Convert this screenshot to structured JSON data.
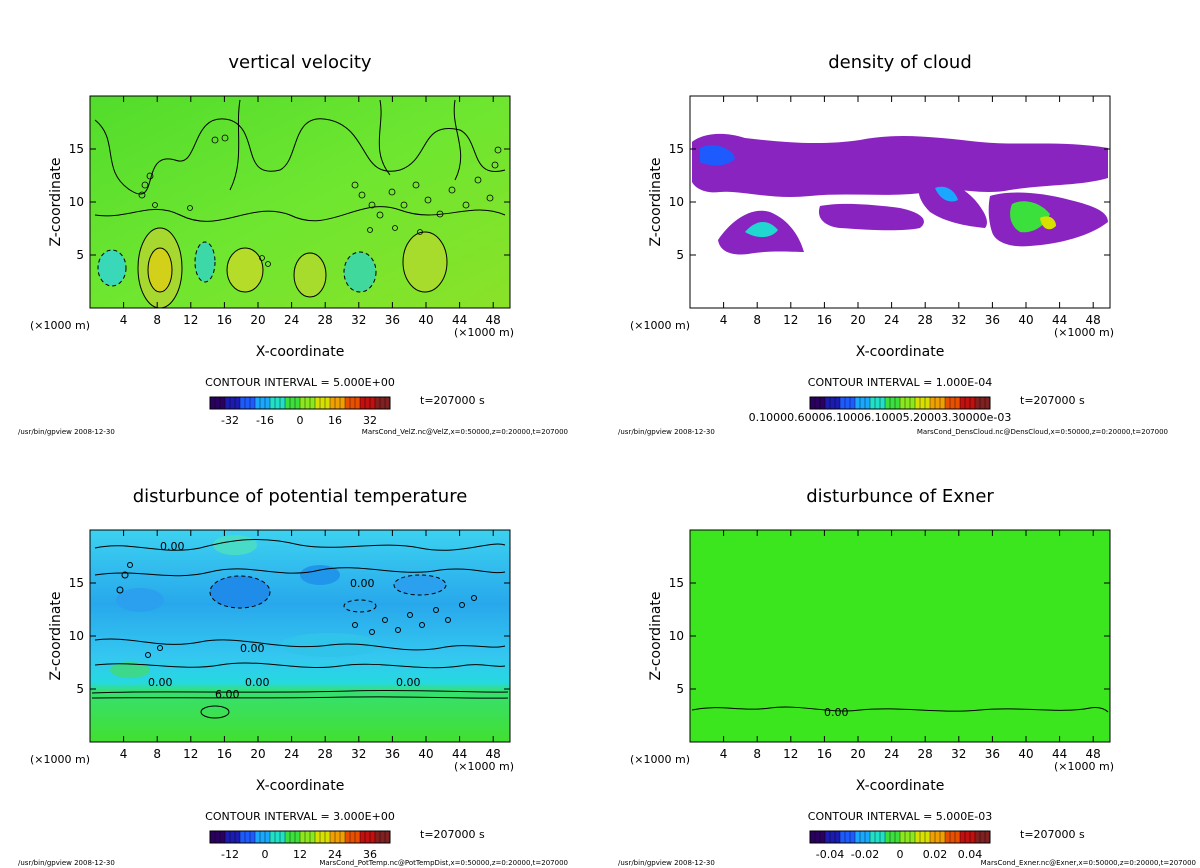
{
  "footer_left": "/usr/bin/gpview  2008-12-30",
  "colors": {
    "bg": "#ffffff",
    "axis": "#000000",
    "contour": "#000000"
  },
  "chart_data": [
    {
      "type": "heatmap",
      "title": "vertical velocity",
      "xlabel": "X-coordinate",
      "ylabel": "Z-coordinate",
      "x_unit": "(×1000 m)",
      "xlim": [
        0,
        50
      ],
      "ylim": [
        0,
        20
      ],
      "x_ticks": [
        4,
        8,
        12,
        16,
        20,
        24,
        28,
        32,
        36,
        40,
        44,
        48
      ],
      "y_ticks": [
        5,
        10,
        15
      ],
      "contour_interval": "CONTOUR INTERVAL = 5.000E+00",
      "time": "t=207000 s",
      "colorbar_ticks": [
        "-32",
        "-16",
        "0",
        "16",
        "32"
      ],
      "colorbar_colors": [
        "#2a0060",
        "#1c1cb0",
        "#1e5bff",
        "#1aa8ff",
        "#20e0c8",
        "#3ce03c",
        "#8ce81e",
        "#d8e000",
        "#f0a000",
        "#e85000",
        "#c01010",
        "#802020"
      ],
      "field_color": "#63e22e",
      "footer_right": "MarsCond_VelZ.nc@VelZ,x=0:50000,z=0:20000,t=207000"
    },
    {
      "type": "heatmap",
      "title": "density of cloud",
      "xlabel": "X-coordinate",
      "ylabel": "Z-coordinate",
      "x_unit": "(×1000 m)",
      "xlim": [
        0,
        50
      ],
      "ylim": [
        0,
        20
      ],
      "x_ticks": [
        4,
        8,
        12,
        16,
        20,
        24,
        28,
        32,
        36,
        40,
        44,
        48
      ],
      "y_ticks": [
        5,
        10,
        15
      ],
      "contour_interval": "CONTOUR INTERVAL = 1.000E-04",
      "time": "t=207000 s",
      "colorbar_ticks_text": "0.10000.60006.10006.10005.20003.30000e-03",
      "colorbar_colors": [
        "#2a0060",
        "#1c1cb0",
        "#1e5bff",
        "#1aa8ff",
        "#20e0c8",
        "#3ce03c",
        "#8ce81e",
        "#d8e000",
        "#f0a000",
        "#e85000",
        "#c01010",
        "#802020"
      ],
      "field_color": "#8a24c0",
      "footer_right": "MarsCond_DensCloud.nc@DensCloud,x=0:50000,z=0:20000,t=207000"
    },
    {
      "type": "heatmap",
      "title": "disturbunce of potential temperature",
      "xlabel": "X-coordinate",
      "ylabel": "Z-coordinate",
      "x_unit": "(×1000 m)",
      "xlim": [
        0,
        50
      ],
      "ylim": [
        0,
        20
      ],
      "x_ticks": [
        4,
        8,
        12,
        16,
        20,
        24,
        28,
        32,
        36,
        40,
        44,
        48
      ],
      "y_ticks": [
        5,
        10,
        15
      ],
      "contour_labels": [
        "0.00",
        "0.00",
        "0.00",
        "0.00",
        "0.00",
        "0.00",
        "6.00"
      ],
      "contour_interval": "CONTOUR INTERVAL = 3.000E+00",
      "time": "t=207000 s",
      "colorbar_ticks": [
        "-12",
        "0",
        "12",
        "24",
        "36"
      ],
      "colorbar_colors": [
        "#2a0060",
        "#1c1cb0",
        "#1e5bff",
        "#1aa8ff",
        "#20e0c8",
        "#3ce03c",
        "#8ce81e",
        "#d8e000",
        "#f0a000",
        "#e85000",
        "#c01010",
        "#802020"
      ],
      "field_color": "#28c8f0",
      "footer_right": "MarsCond_PotTemp.nc@PotTempDist,x=0:50000,z=0:20000,t=207000"
    },
    {
      "type": "heatmap",
      "title": "disturbunce of Exner",
      "xlabel": "X-coordinate",
      "ylabel": "Z-coordinate",
      "x_unit": "(×1000 m)",
      "xlim": [
        0,
        50
      ],
      "ylim": [
        0,
        20
      ],
      "x_ticks": [
        4,
        8,
        12,
        16,
        20,
        24,
        28,
        32,
        36,
        40,
        44,
        48
      ],
      "y_ticks": [
        5,
        10,
        15
      ],
      "contour_labels": [
        "0.00"
      ],
      "contour_interval": "CONTOUR INTERVAL = 5.000E-03",
      "time": "t=207000 s",
      "colorbar_ticks": [
        "-0.04",
        "-0.02",
        "0",
        "0.02",
        "0.04"
      ],
      "colorbar_colors": [
        "#2a0060",
        "#1c1cb0",
        "#1e5bff",
        "#1aa8ff",
        "#20e0c8",
        "#3ce03c",
        "#8ce81e",
        "#d8e000",
        "#f0a000",
        "#e85000",
        "#c01010",
        "#802020"
      ],
      "field_color": "#3ce61e",
      "footer_right": "MarsCond_Exner.nc@Exner,x=0:50000,z=0:20000,t=207000"
    }
  ]
}
